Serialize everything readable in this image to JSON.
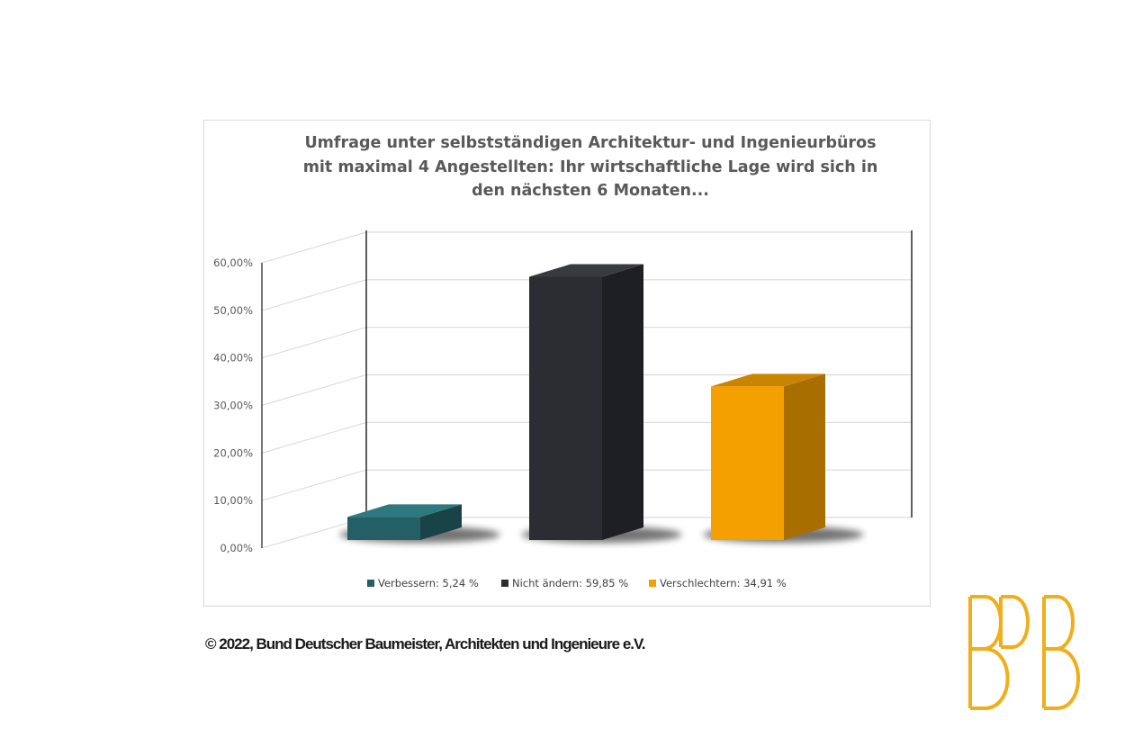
{
  "chart_data": {
    "type": "bar",
    "title": "Umfrage unter selbstständigen Architektur- und Ingenieurbüros mit maximal 4 Angestellten: Ihr wirtschaftliche Lage wird sich in den nächsten 6 Monaten...",
    "categories": [
      "Verbessern",
      "Nicht ändern",
      "Verschlechtern"
    ],
    "values": [
      5.24,
      59.85,
      34.91
    ],
    "unit": "%",
    "legend": [
      "Verbessern: 5,24 %",
      "Nicht ändern: 59,85 %",
      "Verschlechtern: 34,91 %"
    ],
    "ytick_labels": [
      "0,00%",
      "10,00%",
      "20,00%",
      "30,00%",
      "40,00%",
      "50,00%",
      "60,00%"
    ],
    "ylim": [
      0,
      60
    ],
    "legend_position": "bottom",
    "grid": true,
    "style": "3d-column",
    "colors": {
      "front": [
        "#245f66",
        "#2b2d33",
        "#f4a000"
      ],
      "side": [
        "#1a4347",
        "#1e1f23",
        "#a86e00"
      ],
      "top": [
        "#2e7880",
        "#383a40",
        "#c98500"
      ]
    }
  },
  "footer": {
    "copyright": "© 2022, Bund Deutscher Baumeister, Architekten und Ingenieure e.V."
  },
  "logo": {
    "text": "BDB",
    "color": "#f0ae1a"
  }
}
